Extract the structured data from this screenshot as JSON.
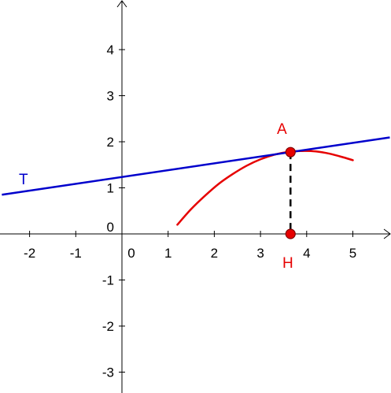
{
  "chart_data": {
    "type": "line",
    "xlim": [
      -2.6,
      5.8
    ],
    "ylim": [
      -3.4,
      5.0
    ],
    "grid": false,
    "x_ticks": [
      {
        "value": -2,
        "label": "-2"
      },
      {
        "value": -1,
        "label": "-1"
      },
      {
        "value": 0,
        "label": "0"
      },
      {
        "value": 1,
        "label": "1"
      },
      {
        "value": 2,
        "label": "2"
      },
      {
        "value": 3,
        "label": "3"
      },
      {
        "value": 4,
        "label": "4"
      },
      {
        "value": 5,
        "label": "5"
      }
    ],
    "y_ticks": [
      {
        "value": 4,
        "label": "4"
      },
      {
        "value": 3,
        "label": "3"
      },
      {
        "value": 2,
        "label": "2"
      },
      {
        "value": 1,
        "label": "1"
      },
      {
        "value": 0,
        "label": "0"
      },
      {
        "value": -1,
        "label": "-1"
      },
      {
        "value": -2,
        "label": "-2"
      },
      {
        "value": -3,
        "label": "-3"
      }
    ],
    "series": [
      {
        "kind": "curve",
        "color": "#e60000",
        "points": [
          [
            1.2,
            0.2
          ],
          [
            1.5,
            0.54
          ],
          [
            1.8,
            0.83
          ],
          [
            2.1,
            1.09
          ],
          [
            2.4,
            1.3
          ],
          [
            2.7,
            1.48
          ],
          [
            3.0,
            1.62
          ],
          [
            3.3,
            1.72
          ],
          [
            3.6,
            1.78
          ],
          [
            3.9,
            1.8
          ],
          [
            4.2,
            1.79
          ],
          [
            4.5,
            1.74
          ],
          [
            4.8,
            1.66
          ],
          [
            5.0,
            1.6
          ]
        ]
      },
      {
        "kind": "line",
        "label": "T",
        "color": "#0000cc",
        "intercept": 1.235,
        "slope": 0.148
      }
    ],
    "points": [
      {
        "label": "A",
        "x": 3.65,
        "y": 1.775,
        "color": "#e60000"
      },
      {
        "label": "H",
        "x": 3.65,
        "y": 0,
        "color": "#e60000"
      }
    ],
    "segments": [
      {
        "from": "A",
        "to": "H",
        "style": "dashed",
        "color": "#000000"
      }
    ]
  }
}
